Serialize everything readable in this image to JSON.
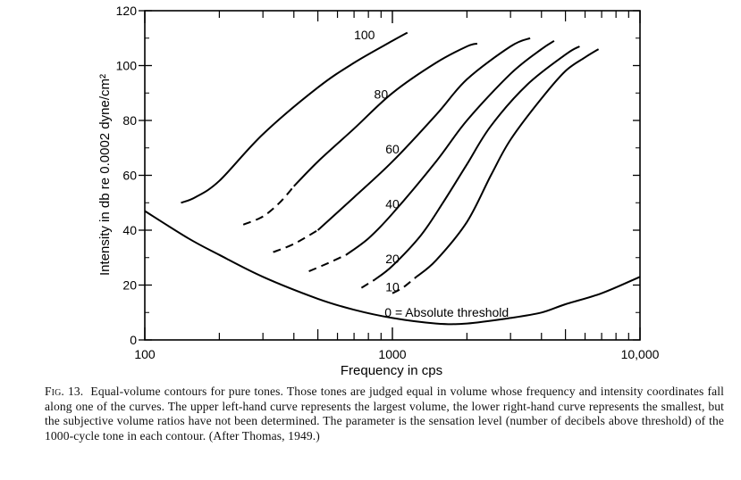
{
  "chart_data": {
    "type": "line",
    "title": "",
    "xlabel": "Frequency in cps",
    "ylabel": "Intensity in db re 0.0002 dyne/cm²",
    "xscale": "log",
    "xlim": [
      100,
      10000
    ],
    "ylim": [
      0,
      120
    ],
    "x_ticks": [
      100,
      1000,
      10000
    ],
    "x_tick_labels": [
      "100",
      "1000",
      "10,000"
    ],
    "y_ticks": [
      0,
      20,
      40,
      60,
      80,
      100,
      120
    ],
    "y_tick_labels": [
      "0",
      "20",
      "40",
      "60",
      "80",
      "100",
      "120"
    ],
    "grid": false,
    "series": [
      {
        "name": "100",
        "dashed_until": 0,
        "x": [
          140,
          160,
          200,
          300,
          500,
          700,
          1000,
          1150
        ],
        "y": [
          50,
          52,
          58,
          75,
          92,
          101,
          109,
          112
        ]
      },
      {
        "name": "80",
        "dashed_until": 3,
        "x": [
          250,
          300,
          350,
          400,
          500,
          700,
          1000,
          1500,
          2000,
          2200
        ],
        "y": [
          42,
          45,
          50,
          56,
          65,
          77,
          90,
          101,
          107,
          108
        ]
      },
      {
        "name": "60",
        "dashed_until": 2,
        "x": [
          330,
          400,
          500,
          700,
          1000,
          1500,
          2000,
          3000,
          3600
        ],
        "y": [
          32,
          35,
          40,
          52,
          65,
          82,
          95,
          107,
          110
        ]
      },
      {
        "name": "40",
        "dashed_until": 2,
        "x": [
          460,
          550,
          650,
          800,
          1000,
          1500,
          2000,
          3000,
          4000,
          4500
        ],
        "y": [
          25,
          28,
          31,
          37,
          46,
          65,
          80,
          97,
          106,
          109
        ]
      },
      {
        "name": "20",
        "dashed_until": 1,
        "x": [
          750,
          850,
          1000,
          1300,
          1600,
          2000,
          2500,
          3500,
          5000,
          5700
        ],
        "y": [
          19,
          22,
          27,
          38,
          50,
          64,
          78,
          93,
          104,
          107
        ]
      },
      {
        "name": "10",
        "dashed_until": 2,
        "x": [
          1000,
          1100,
          1250,
          1500,
          2000,
          2500,
          3000,
          4000,
          5000,
          6000,
          6800
        ],
        "y": [
          17,
          19,
          23,
          29,
          43,
          60,
          73,
          88,
          98,
          103,
          106
        ]
      },
      {
        "name": "0 = Absolute threshold",
        "dashed_until": 0,
        "x": [
          100,
          150,
          200,
          300,
          500,
          700,
          1000,
          1500,
          2000,
          3000,
          4000,
          5000,
          7000,
          10000
        ],
        "y": [
          47,
          37,
          31,
          23,
          15,
          11,
          8,
          6,
          6,
          8,
          10,
          13,
          17,
          23
        ]
      }
    ]
  },
  "caption": {
    "fig_label": "Fig. 13.",
    "text": "Equal-volume contours for pure tones. Those tones are judged equal in volume whose frequency and intensity coordinates fall along one of the curves. The upper left-hand curve represents the largest volume, the lower right-hand curve represents the smallest, but the subjective volume ratios have not been determined. The parameter is the sensation level (number of decibels above threshold) of the 1000-cycle tone in each contour. (After Thomas, 1949.)"
  }
}
